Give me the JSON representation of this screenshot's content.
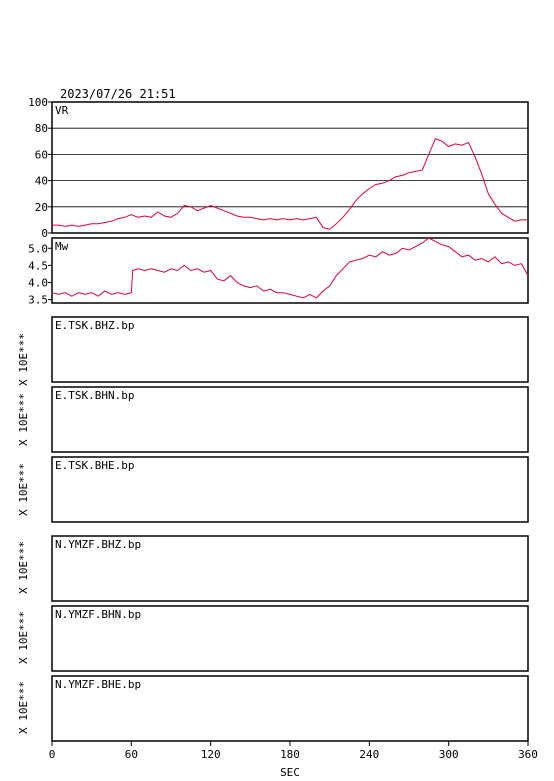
{
  "header": {
    "timestamp": "2023/07/26  21:51"
  },
  "chart_data": [
    {
      "type": "line",
      "panel": "vr",
      "label": "VR",
      "ylim": [
        0,
        100
      ],
      "yticks": [
        "0",
        "20",
        "40",
        "60",
        "80",
        "100"
      ],
      "grid": true,
      "color": "#e0003c",
      "x": [
        0,
        5,
        10,
        15,
        20,
        25,
        30,
        35,
        40,
        45,
        50,
        55,
        60,
        65,
        70,
        75,
        80,
        85,
        90,
        95,
        100,
        105,
        110,
        115,
        120,
        125,
        130,
        135,
        140,
        145,
        150,
        155,
        160,
        165,
        170,
        175,
        180,
        185,
        190,
        195,
        200,
        205,
        210,
        215,
        220,
        225,
        230,
        235,
        240,
        245,
        250,
        255,
        260,
        265,
        270,
        275,
        280,
        285,
        290,
        295,
        300,
        305,
        310,
        315,
        320,
        325,
        330,
        335,
        340,
        345,
        350,
        355,
        360
      ],
      "values": [
        6,
        6,
        5,
        6,
        5,
        6,
        7,
        7,
        8,
        9,
        11,
        12,
        14,
        12,
        13,
        12,
        16,
        13,
        12,
        15,
        21,
        20,
        17,
        19,
        21,
        19,
        17,
        15,
        13,
        12,
        12,
        11,
        10,
        11,
        10,
        11,
        10,
        11,
        10,
        11,
        12,
        4,
        3,
        7,
        12,
        18,
        25,
        30,
        34,
        37,
        38,
        40,
        43,
        44,
        46,
        47,
        48,
        60,
        72,
        70,
        66,
        68,
        67,
        69,
        58,
        45,
        30,
        22,
        15,
        12,
        9,
        10,
        10
      ]
    },
    {
      "type": "line",
      "panel": "mw",
      "label": "Mw",
      "ylim": [
        3.4,
        5.3
      ],
      "yticks": [
        "3.5",
        "4.0",
        "4.5",
        "5.0"
      ],
      "grid": false,
      "color": "#e0003c",
      "x": [
        0,
        5,
        10,
        15,
        20,
        25,
        30,
        35,
        40,
        45,
        50,
        55,
        60,
        61,
        65,
        70,
        75,
        80,
        85,
        90,
        95,
        100,
        105,
        110,
        115,
        120,
        125,
        130,
        135,
        140,
        145,
        150,
        155,
        160,
        165,
        170,
        175,
        180,
        185,
        190,
        195,
        200,
        205,
        210,
        215,
        220,
        225,
        230,
        235,
        240,
        245,
        250,
        255,
        260,
        265,
        270,
        275,
        280,
        285,
        290,
        295,
        300,
        305,
        310,
        315,
        320,
        325,
        330,
        335,
        340,
        345,
        350,
        355,
        360
      ],
      "values": [
        3.7,
        3.65,
        3.7,
        3.6,
        3.7,
        3.65,
        3.7,
        3.6,
        3.75,
        3.65,
        3.7,
        3.65,
        3.7,
        4.35,
        4.4,
        4.35,
        4.4,
        4.35,
        4.3,
        4.4,
        4.35,
        4.5,
        4.35,
        4.4,
        4.3,
        4.35,
        4.1,
        4.05,
        4.2,
        4.0,
        3.9,
        3.85,
        3.9,
        3.75,
        3.8,
        3.7,
        3.7,
        3.65,
        3.6,
        3.55,
        3.65,
        3.55,
        3.75,
        3.9,
        4.2,
        4.4,
        4.6,
        4.65,
        4.7,
        4.8,
        4.75,
        4.9,
        4.8,
        4.85,
        5.0,
        4.95,
        5.05,
        5.15,
        5.3,
        5.2,
        5.1,
        5.05,
        4.9,
        4.75,
        4.8,
        4.65,
        4.7,
        4.6,
        4.75,
        4.55,
        4.6,
        4.5,
        4.55,
        4.2
      ]
    }
  ],
  "waveform_panels": [
    {
      "label": "E.TSK.BHZ.bp",
      "scale": "X 10E***"
    },
    {
      "label": "E.TSK.BHN.bp",
      "scale": "X 10E***"
    },
    {
      "label": "E.TSK.BHE.bp",
      "scale": "X 10E***"
    },
    {
      "label": "N.YMZF.BHZ.bp",
      "scale": "X 10E***"
    },
    {
      "label": "N.YMZF.BHN.bp",
      "scale": "X 10E***"
    },
    {
      "label": "N.YMZF.BHE.bp",
      "scale": "X 10E***"
    }
  ],
  "x_axis": {
    "label": "SEC",
    "xlim": [
      0,
      360
    ],
    "ticks": [
      "0",
      "60",
      "120",
      "180",
      "240",
      "300",
      "360"
    ]
  }
}
